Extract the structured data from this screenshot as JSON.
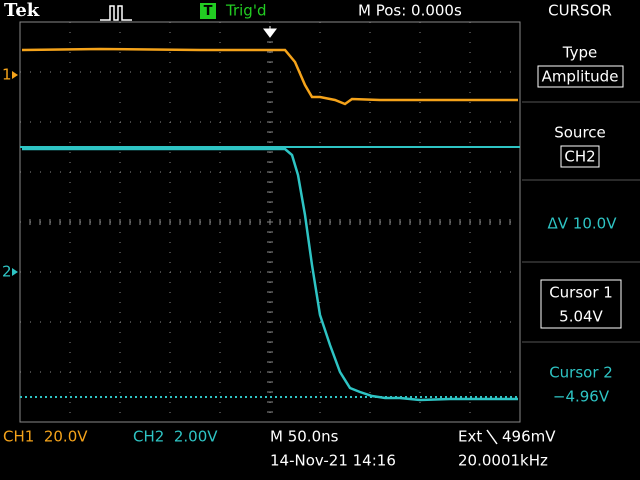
{
  "header": {
    "brand": "Tek",
    "trigger_icon": "T",
    "trigger_status": "Trig'd",
    "position": "M Pos: 0.000s",
    "menu_title": "CURSOR"
  },
  "menu": [
    {
      "label": "Type",
      "value": "Amplitude"
    },
    {
      "label": "Source",
      "value": "CH2"
    },
    {
      "label": "ΔV 10.0V"
    },
    {
      "label": "Cursor 1",
      "value": "5.04V"
    },
    {
      "label": "Cursor 2",
      "value": "−4.96V"
    }
  ],
  "markers": {
    "ch1": "1",
    "ch2": "2"
  },
  "footer": {
    "ch1": "CH1  20.0V",
    "ch2": "CH2  2.00V",
    "timebase": "M 50.0ns",
    "date": "14-Nov-21 14:16",
    "trigger_source": "Ext",
    "trigger_level": "496mV",
    "frequency": "20.0001kHz"
  }
}
